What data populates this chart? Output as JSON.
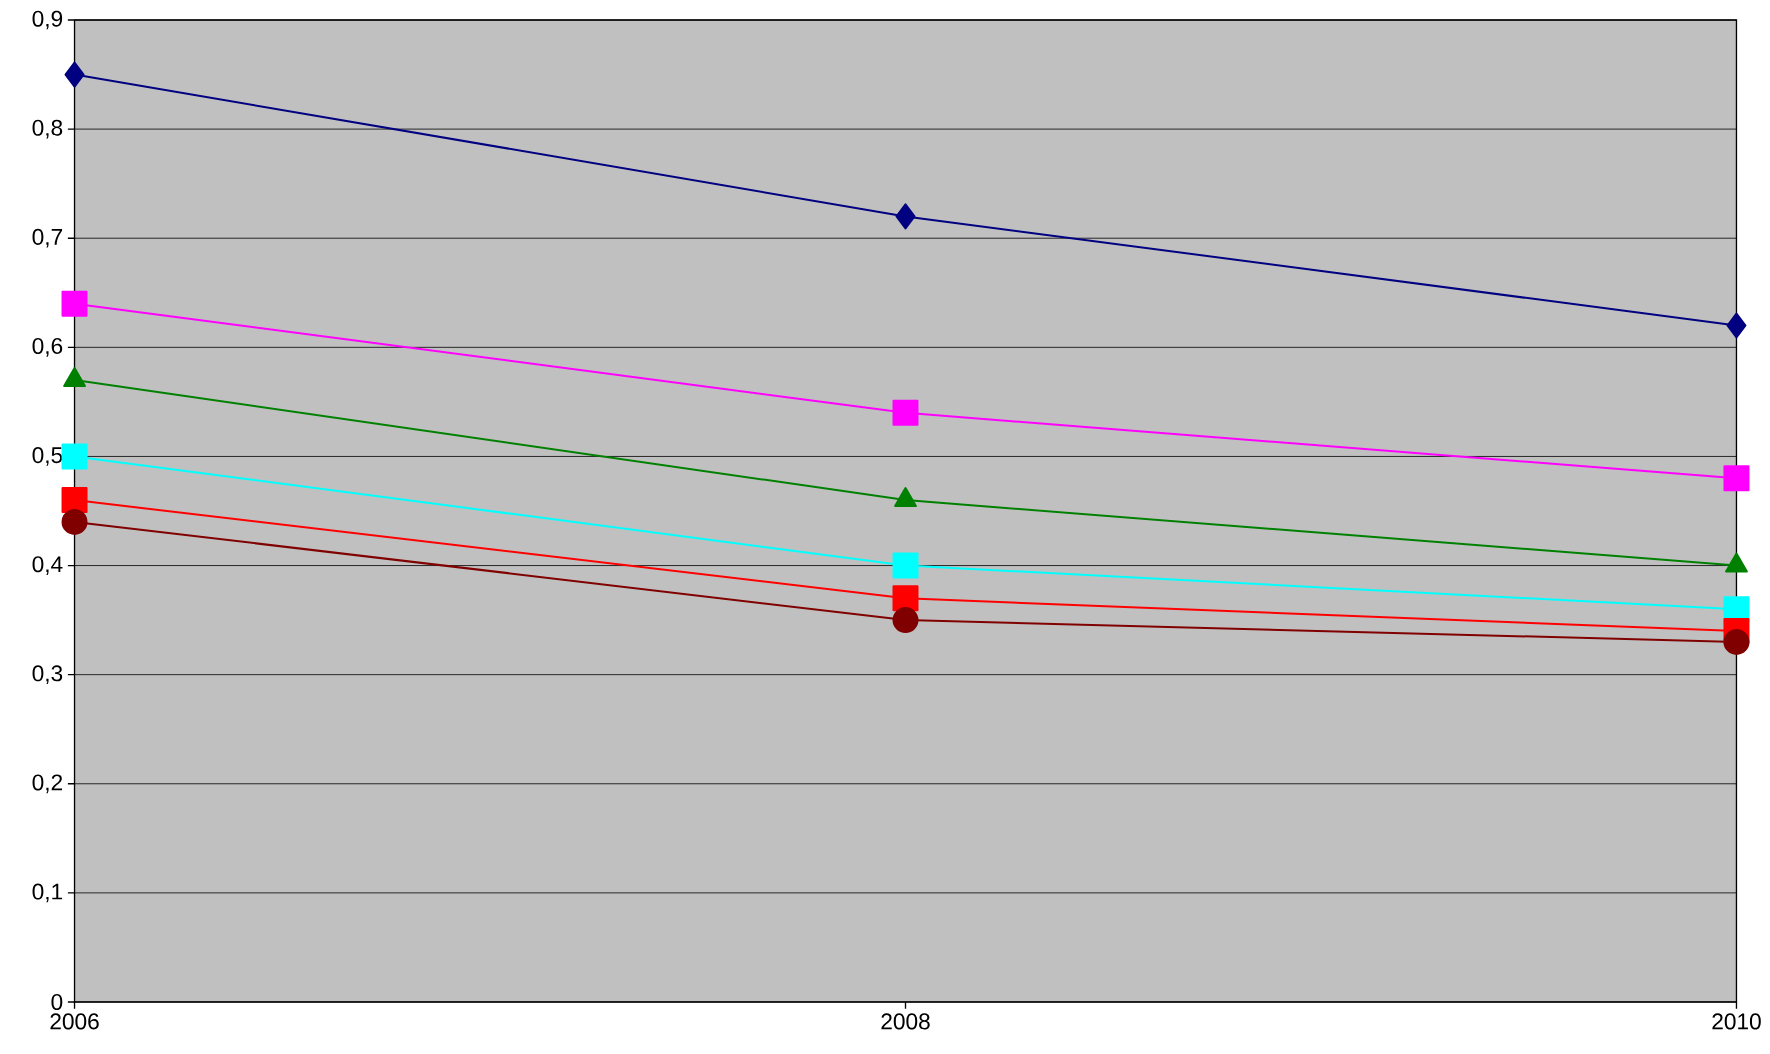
{
  "chart_data": {
    "type": "line",
    "x": [
      2006,
      2008,
      2010
    ],
    "xlim": [
      2006,
      2010
    ],
    "xticks": [
      2006,
      2008,
      2010
    ],
    "ylim": [
      0,
      0.9
    ],
    "yticks": [
      {
        "value": 0,
        "label": "0"
      },
      {
        "value": 0.1,
        "label": "0,1"
      },
      {
        "value": 0.2,
        "label": "0,2"
      },
      {
        "value": 0.3,
        "label": "0,3"
      },
      {
        "value": 0.4,
        "label": "0,4"
      },
      {
        "value": 0.5,
        "label": "0,5"
      },
      {
        "value": 0.6,
        "label": "0,6"
      },
      {
        "value": 0.7,
        "label": "0,7"
      },
      {
        "value": 0.8,
        "label": "0,8"
      },
      {
        "value": 0.9,
        "label": "0,9"
      }
    ],
    "grid": "y",
    "series": [
      {
        "color": "#000080",
        "marker": "diamond",
        "values": [
          0.85,
          0.72,
          0.62
        ]
      },
      {
        "color": "#ff00ff",
        "marker": "square",
        "values": [
          0.64,
          0.54,
          0.48
        ]
      },
      {
        "color": "#008000",
        "marker": "triangle",
        "values": [
          0.57,
          0.46,
          0.4
        ]
      },
      {
        "color": "#00ffff",
        "marker": "square",
        "values": [
          0.5,
          0.4,
          0.36
        ]
      },
      {
        "color": "#ff0000",
        "marker": "square",
        "values": [
          0.46,
          0.37,
          0.34
        ]
      },
      {
        "color": "#800000",
        "marker": "circle",
        "values": [
          0.44,
          0.35,
          0.33
        ]
      }
    ]
  }
}
